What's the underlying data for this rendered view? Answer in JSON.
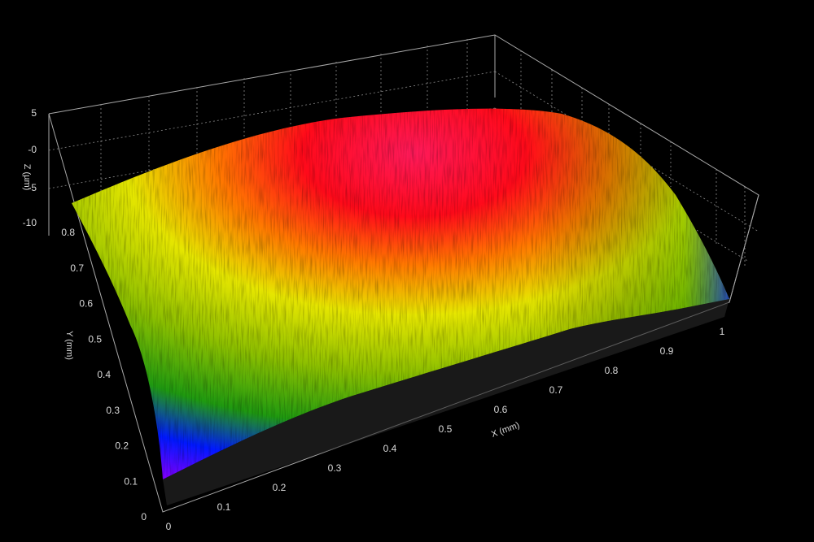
{
  "chart_data": {
    "type": "surface",
    "x_axis": {
      "label": "X (mm)",
      "ticks": [
        "0",
        "0.1",
        "0.2",
        "0.3",
        "0.4",
        "0.5",
        "0.6",
        "0.7",
        "0.8",
        "0.9",
        "1"
      ],
      "range": [
        0,
        1
      ]
    },
    "y_axis": {
      "label": "Y (mm)",
      "ticks": [
        "0",
        "0.1",
        "0.2",
        "0.3",
        "0.4",
        "0.5",
        "0.6",
        "0.7",
        "0.8"
      ],
      "range": [
        0,
        0.8
      ]
    },
    "z_axis": {
      "label": "Z (µm)",
      "ticks": [
        "-10",
        "-5",
        "-0",
        "5"
      ],
      "range": [
        -10,
        5
      ]
    },
    "colormap": [
      "#6a00ff",
      "#0022ff",
      "#00a000",
      "#6fb000",
      "#e0e000",
      "#ff8800",
      "#ff0010",
      "#ff2060"
    ],
    "grid": true,
    "background": "#000000"
  }
}
